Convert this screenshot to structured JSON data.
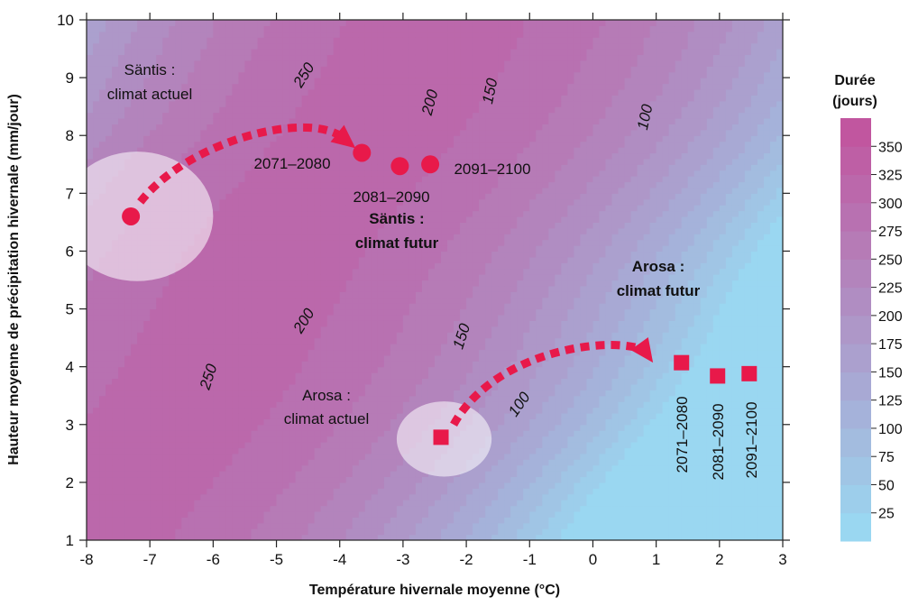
{
  "chart_data": {
    "type": "contour",
    "xlabel": "Température hivernale moyenne (°C)",
    "ylabel": "Hauteur moyenne de précipitation hivernale (mm/jour)",
    "xlim": [
      -8,
      3
    ],
    "ylim": [
      1,
      10
    ],
    "x_ticks": [
      -8,
      -7,
      -6,
      -5,
      -4,
      -3,
      -2,
      -1,
      0,
      1,
      2,
      3
    ],
    "y_ticks": [
      1,
      2,
      3,
      4,
      5,
      6,
      7,
      8,
      9,
      10
    ],
    "colorbar": {
      "title_line1": "Durée",
      "title_line2": "(jours)",
      "levels": [
        25,
        50,
        75,
        100,
        125,
        150,
        175,
        200,
        225,
        250,
        275,
        300,
        325,
        350
      ],
      "color_low": "#99dcf4",
      "color_high": "#c2519c"
    },
    "contour_labels": [
      {
        "text": "250",
        "x": -4.5,
        "y": 9.0,
        "angle": -58
      },
      {
        "text": "200",
        "x": -2.5,
        "y": 8.55,
        "angle": -75
      },
      {
        "text": "150",
        "x": -1.55,
        "y": 8.75,
        "angle": -78
      },
      {
        "text": "100",
        "x": 0.9,
        "y": 8.3,
        "angle": -78
      },
      {
        "text": "250",
        "x": -6.0,
        "y": 3.8,
        "angle": -72
      },
      {
        "text": "200",
        "x": -4.5,
        "y": 4.75,
        "angle": -58
      },
      {
        "text": "150",
        "x": -2.0,
        "y": 4.5,
        "angle": -72
      },
      {
        "text": "100",
        "x": -1.1,
        "y": 3.3,
        "angle": -55
      }
    ],
    "sites": [
      {
        "name": "Säntis",
        "current_label_line1": "Säntis :",
        "current_label_line2": "climat actuel",
        "future_label_line1": "Säntis :",
        "future_label_line2": "climat futur",
        "marker": "circle",
        "current": {
          "x": -7.3,
          "y": 6.6
        },
        "ellipse": {
          "cx": -7.2,
          "cy": 6.6,
          "rx": 1.2,
          "ry": 1.12
        },
        "future": [
          {
            "period": "2071–2080",
            "x": -3.65,
            "y": 7.7
          },
          {
            "period": "2081–2090",
            "x": -3.05,
            "y": 7.47
          },
          {
            "period": "2091–2100",
            "x": -2.57,
            "y": 7.5
          }
        ],
        "arrow": [
          [
            -7.15,
            6.85
          ],
          [
            -6.4,
            7.9
          ],
          [
            -4.6,
            8.4
          ],
          [
            -4.0,
            8.0
          ],
          [
            -3.75,
            7.78
          ]
        ]
      },
      {
        "name": "Arosa",
        "current_label_line1": "Arosa :",
        "current_label_line2": "climat actuel",
        "future_label_line1": "Arosa :",
        "future_label_line2": "climat futur",
        "marker": "square",
        "current": {
          "x": -2.4,
          "y": 2.78
        },
        "ellipse": {
          "cx": -2.35,
          "cy": 2.75,
          "rx": 0.75,
          "ry": 0.65
        },
        "future": [
          {
            "period": "2071–2080",
            "x": 1.4,
            "y": 4.07
          },
          {
            "period": "2081–2090",
            "x": 1.97,
            "y": 3.84
          },
          {
            "period": "2091–2100",
            "x": 2.47,
            "y": 3.88
          }
        ],
        "arrow": [
          [
            -2.2,
            3.0
          ],
          [
            -1.6,
            4.2
          ],
          [
            0.1,
            4.55
          ],
          [
            0.8,
            4.3
          ],
          [
            0.95,
            4.07
          ]
        ]
      }
    ]
  },
  "style": {
    "marker_color": "#e8194a",
    "ellipse_color": "#ffffff",
    "ellipse_opacity": 0.55
  }
}
